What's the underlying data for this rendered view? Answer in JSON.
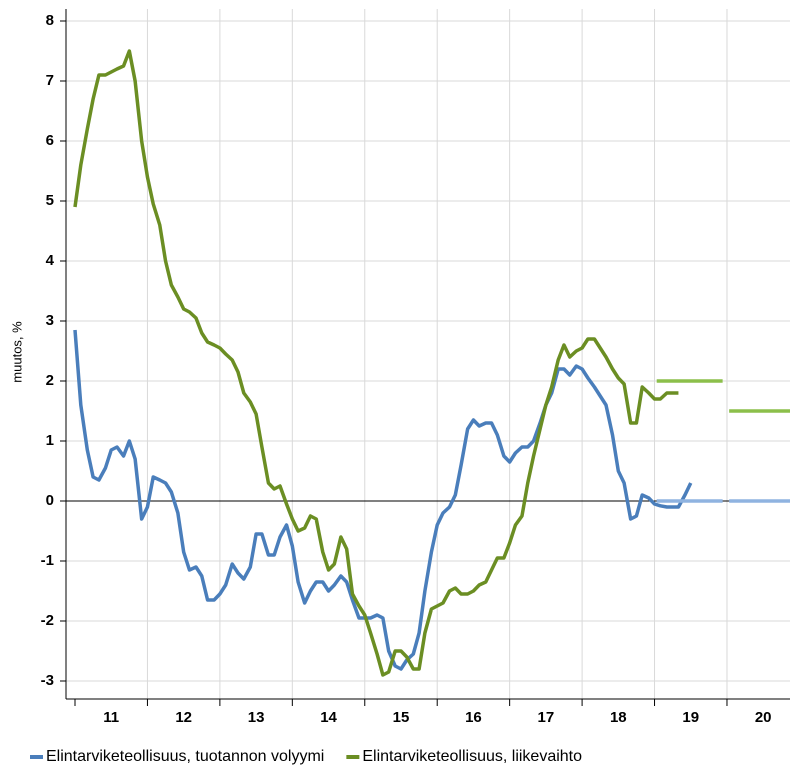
{
  "chart_data": {
    "type": "line",
    "y_label": "muutos, %",
    "categories": [
      "11",
      "12",
      "13",
      "14",
      "15",
      "16",
      "17",
      "18",
      "19",
      "20"
    ],
    "xlim": [
      11,
      20.87
    ],
    "ylim": [
      -3.3,
      8.2
    ],
    "yticks": [
      -3,
      -2,
      -1,
      0,
      1,
      2,
      3,
      4,
      5,
      6,
      7,
      8
    ],
    "grid": true,
    "legend": "bottom",
    "series": [
      {
        "name": "Elintarviketeollisuus, tuotannon volyymi",
        "color": "#4a7ebb",
        "x": [
          11,
          11.08,
          11.17,
          11.25,
          11.33,
          11.42,
          11.5,
          11.58,
          11.67,
          11.75,
          11.83,
          11.92,
          12,
          12.08,
          12.17,
          12.25,
          12.33,
          12.42,
          12.5,
          12.58,
          12.67,
          12.75,
          12.83,
          12.92,
          13,
          13.08,
          13.17,
          13.25,
          13.33,
          13.42,
          13.5,
          13.58,
          13.67,
          13.75,
          13.83,
          13.92,
          14,
          14.08,
          14.17,
          14.25,
          14.33,
          14.42,
          14.5,
          14.58,
          14.67,
          14.75,
          14.83,
          14.92,
          15,
          15.08,
          15.17,
          15.25,
          15.33,
          15.42,
          15.5,
          15.58,
          15.67,
          15.75,
          15.83,
          15.92,
          16,
          16.08,
          16.17,
          16.25,
          16.33,
          16.42,
          16.5,
          16.58,
          16.67,
          16.75,
          16.83,
          16.92,
          17,
          17.08,
          17.17,
          17.25,
          17.33,
          17.42,
          17.5,
          17.58,
          17.67,
          17.75,
          17.83,
          17.92,
          18,
          18.08,
          18.17,
          18.25,
          18.33,
          18.42,
          18.5,
          18.58,
          18.67,
          18.75,
          18.83,
          18.92,
          19,
          19.08,
          19.17,
          19.25,
          19.33,
          19.42,
          19.5
        ],
        "values": [
          2.85,
          1.6,
          0.85,
          0.4,
          0.35,
          0.55,
          0.85,
          0.9,
          0.75,
          1.0,
          0.7,
          -0.3,
          -0.1,
          0.4,
          0.35,
          0.3,
          0.15,
          -0.2,
          -0.85,
          -1.15,
          -1.1,
          -1.25,
          -1.65,
          -1.65,
          -1.55,
          -1.4,
          -1.05,
          -1.2,
          -1.3,
          -1.1,
          -0.55,
          -0.55,
          -0.9,
          -0.9,
          -0.6,
          -0.4,
          -0.75,
          -1.35,
          -1.7,
          -1.5,
          -1.35,
          -1.35,
          -1.5,
          -1.4,
          -1.25,
          -1.35,
          -1.65,
          -1.95,
          -1.95,
          -1.95,
          -1.9,
          -1.95,
          -2.5,
          -2.75,
          -2.8,
          -2.65,
          -2.55,
          -2.2,
          -1.5,
          -0.85,
          -0.4,
          -0.2,
          -0.1,
          0.1,
          0.6,
          1.2,
          1.35,
          1.25,
          1.3,
          1.3,
          1.1,
          0.75,
          0.65,
          0.8,
          0.9,
          0.9,
          1.0,
          1.3,
          1.6,
          1.8,
          2.2,
          2.2,
          2.1,
          2.25,
          2.2,
          2.05,
          1.9,
          1.75,
          1.6,
          1.1,
          0.5,
          0.3,
          -0.3,
          -0.25,
          0.1,
          0.05,
          -0.05,
          -0.08,
          -0.1,
          -0.1,
          -0.1,
          0.1,
          0.3
        ]
      },
      {
        "name": "Elintarviketeollisuus, liikevaihto",
        "color": "#6b8e23",
        "x": [
          11,
          11.08,
          11.17,
          11.25,
          11.33,
          11.42,
          11.5,
          11.58,
          11.67,
          11.75,
          11.83,
          11.92,
          12,
          12.08,
          12.17,
          12.25,
          12.33,
          12.42,
          12.5,
          12.58,
          12.67,
          12.75,
          12.83,
          12.92,
          13,
          13.08,
          13.17,
          13.25,
          13.33,
          13.42,
          13.5,
          13.58,
          13.67,
          13.75,
          13.83,
          13.92,
          14,
          14.08,
          14.17,
          14.25,
          14.33,
          14.42,
          14.5,
          14.58,
          14.67,
          14.75,
          14.83,
          14.92,
          15,
          15.08,
          15.17,
          15.25,
          15.33,
          15.42,
          15.5,
          15.58,
          15.67,
          15.75,
          15.83,
          15.92,
          16,
          16.08,
          16.17,
          16.25,
          16.33,
          16.42,
          16.5,
          16.58,
          16.67,
          16.75,
          16.83,
          16.92,
          17,
          17.08,
          17.17,
          17.25,
          17.33,
          17.42,
          17.5,
          17.58,
          17.67,
          17.75,
          17.83,
          17.92,
          18,
          18.08,
          18.17,
          18.25,
          18.33,
          18.42,
          18.5,
          18.58,
          18.67,
          18.75,
          18.83,
          18.92,
          19,
          19.08,
          19.17,
          19.25,
          19.33
        ],
        "values": [
          4.9,
          5.6,
          6.2,
          6.7,
          7.1,
          7.1,
          7.15,
          7.2,
          7.25,
          7.5,
          7.0,
          6.0,
          5.4,
          4.95,
          4.6,
          4.0,
          3.6,
          3.4,
          3.2,
          3.15,
          3.05,
          2.8,
          2.65,
          2.6,
          2.55,
          2.45,
          2.35,
          2.15,
          1.8,
          1.65,
          1.45,
          0.9,
          0.3,
          0.2,
          0.25,
          -0.05,
          -0.3,
          -0.5,
          -0.45,
          -0.25,
          -0.3,
          -0.85,
          -1.15,
          -1.05,
          -0.6,
          -0.8,
          -1.55,
          -1.75,
          -1.9,
          -2.2,
          -2.55,
          -2.9,
          -2.85,
          -2.5,
          -2.5,
          -2.6,
          -2.8,
          -2.8,
          -2.2,
          -1.8,
          -1.75,
          -1.7,
          -1.5,
          -1.45,
          -1.55,
          -1.55,
          -1.5,
          -1.4,
          -1.35,
          -1.15,
          -0.95,
          -0.95,
          -0.7,
          -0.4,
          -0.25,
          0.3,
          0.75,
          1.2,
          1.6,
          1.9,
          2.35,
          2.6,
          2.4,
          2.5,
          2.55,
          2.7,
          2.7,
          2.55,
          2.4,
          2.2,
          2.05,
          1.95,
          1.3,
          1.3,
          1.9,
          1.8,
          1.7,
          1.7,
          1.8,
          1.8,
          1.8
        ]
      },
      {
        "color": "#8fb3e0",
        "x": [
          19.03,
          19.94,
          19.97,
          20.03,
          20.87
        ],
        "values": [
          0,
          0,
          null,
          0,
          0
        ]
      },
      {
        "color": "#8cbf4a",
        "x": [
          19.03,
          19.94,
          19.97,
          20.03,
          20.87
        ],
        "values": [
          2,
          2,
          null,
          1.5,
          1.5
        ]
      }
    ]
  }
}
